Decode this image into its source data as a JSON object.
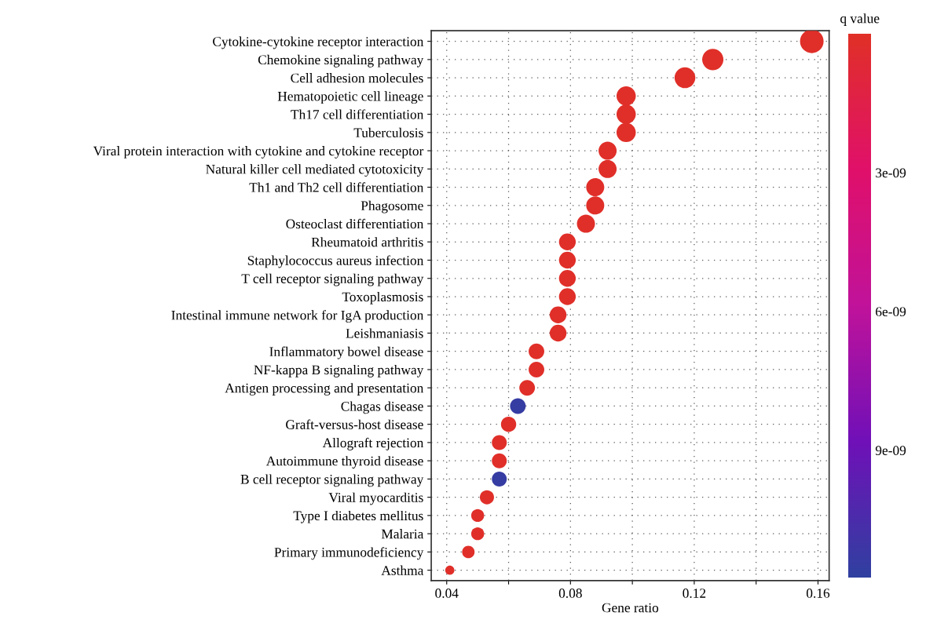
{
  "chart_data": {
    "type": "bubble",
    "xlabel": "Gene ratio",
    "clabel": "q value",
    "categories": [
      "Cytokine-cytokine receptor interaction",
      "Chemokine signaling pathway",
      "Cell adhesion molecules",
      "Hematopoietic cell lineage",
      "Th17 cell differentiation",
      "Tuberculosis",
      "Viral protein interaction with cytokine and cytokine receptor",
      "Natural killer cell mediated cytotoxicity",
      "Th1 and Th2 cell differentiation",
      "Phagosome",
      "Osteoclast differentiation",
      "Rheumatoid arthritis",
      "Staphylococcus aureus infection",
      "T cell receptor signaling pathway",
      "Toxoplasmosis",
      "Intestinal immune network for IgA production",
      "Leishmaniasis",
      "Inflammatory bowel disease",
      "NF-kappa B signaling pathway",
      "Antigen processing and presentation",
      "Chagas disease",
      "Graft-versus-host disease",
      "Allograft rejection",
      "Autoimmune thyroid disease",
      "B cell receptor signaling pathway",
      "Viral myocarditis",
      "Type I diabetes mellitus",
      "Malaria",
      "Primary immunodeficiency",
      "Asthma"
    ],
    "values": [
      0.158,
      0.126,
      0.117,
      0.098,
      0.098,
      0.098,
      0.092,
      0.092,
      0.088,
      0.088,
      0.085,
      0.079,
      0.079,
      0.079,
      0.079,
      0.076,
      0.076,
      0.069,
      0.069,
      0.066,
      0.063,
      0.06,
      0.057,
      0.057,
      0.057,
      0.053,
      0.05,
      0.05,
      0.047,
      0.041
    ],
    "sizes": [
      1,
      0.81,
      0.78,
      0.67,
      0.67,
      0.67,
      0.59,
      0.59,
      0.59,
      0.59,
      0.59,
      0.51,
      0.51,
      0.51,
      0.51,
      0.51,
      0.51,
      0.44,
      0.44,
      0.44,
      0.44,
      0.42,
      0.4,
      0.4,
      0.4,
      0.36,
      0.3,
      0.3,
      0.28,
      0.15
    ],
    "cvalues": [
      1e-10,
      1e-10,
      1e-10,
      1e-10,
      1e-10,
      1e-10,
      1e-10,
      1e-10,
      1e-10,
      1e-10,
      1e-10,
      1e-10,
      1e-10,
      1e-10,
      1e-10,
      1e-10,
      1e-10,
      1e-10,
      1e-10,
      1e-10,
      1.15e-08,
      1e-10,
      1e-10,
      1e-10,
      1.15e-08,
      1e-10,
      1e-10,
      1e-10,
      1e-10,
      1e-10
    ],
    "xlim": [
      0.035,
      0.1636
    ],
    "xticks": [
      0.04,
      {
        "value": 0.06,
        "label": null
      },
      0.08,
      {
        "value": 0.1,
        "label": null
      },
      0.12,
      {
        "value": 0.14,
        "label": null
      },
      0.16
    ],
    "clim": [
      1.175e-08,
      0
    ],
    "cticks": [
      {
        "value": 3e-09,
        "label": "3e-09"
      },
      {
        "value": 6e-09,
        "label": "6e-09"
      },
      {
        "value": 9e-09,
        "label": "9e-09"
      }
    ],
    "grid": true,
    "orientation": "horizontal"
  }
}
